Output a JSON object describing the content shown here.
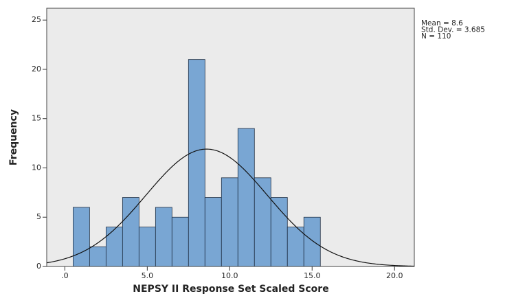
{
  "chart_data": {
    "type": "histogram",
    "x_label": "NEPSY II Response Set Scaled Score",
    "y_label": "Frequency",
    "bins": [
      0.5,
      1.5,
      2.5,
      3.5,
      4.5,
      5.5,
      6.5,
      7.5,
      8.5,
      9.5,
      10.5,
      11.5,
      12.5,
      13.5,
      14.5,
      15.5
    ],
    "values": [
      6,
      2,
      4,
      7,
      4,
      6,
      5,
      21,
      7,
      9,
      14,
      9,
      7,
      4,
      5
    ],
    "color": "#79a6d3",
    "xlim": [
      -1.1,
      21.2
    ],
    "ylim": [
      0,
      26.2
    ],
    "xticks": [
      {
        "value": 0,
        "label": ".0"
      },
      {
        "value": 5,
        "label": "5.0"
      },
      {
        "value": 10,
        "label": "10.0"
      },
      {
        "value": 15,
        "label": "15.0"
      },
      {
        "value": 20,
        "label": "20.0"
      }
    ],
    "yticks": [
      0,
      5,
      10,
      15,
      20,
      25
    ],
    "stats": [
      {
        "value": 8.6,
        "label": "Mean = 8.6"
      },
      {
        "value": 3.685,
        "label": "Std. Dev. = 3.685"
      },
      {
        "value": 110,
        "label": "N = 110"
      }
    ],
    "normal_curve": true
  }
}
